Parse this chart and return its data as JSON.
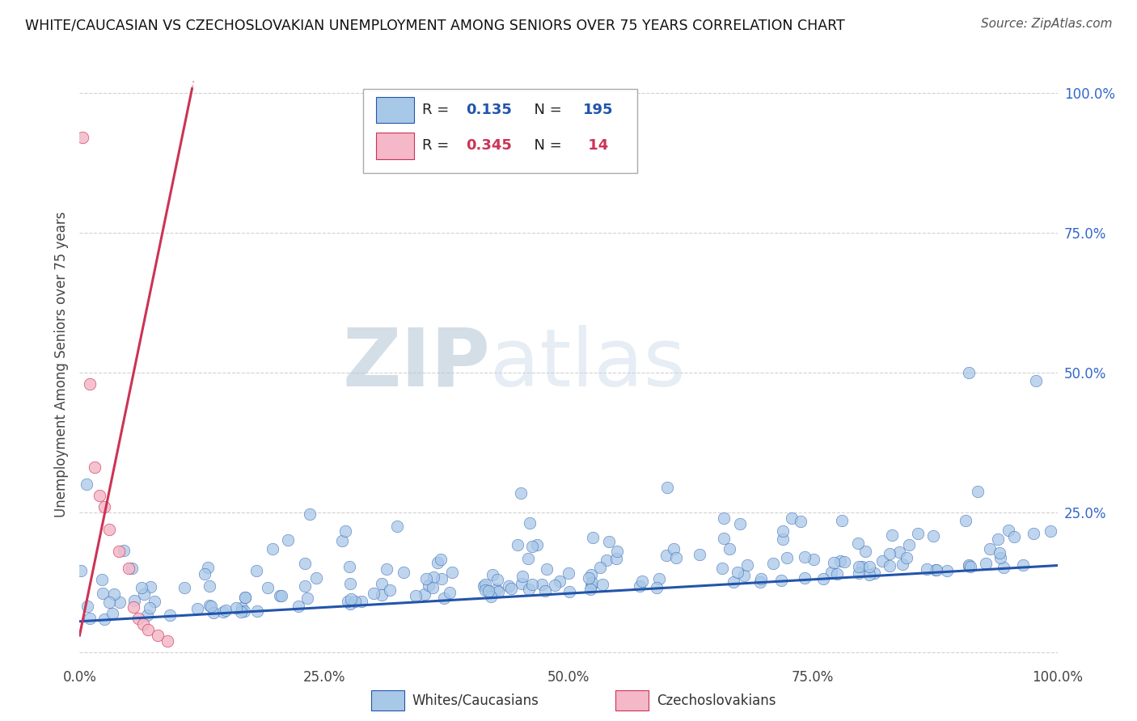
{
  "title": "WHITE/CAUCASIAN VS CZECHOSLOVAKIAN UNEMPLOYMENT AMONG SENIORS OVER 75 YEARS CORRELATION CHART",
  "source": "Source: ZipAtlas.com",
  "ylabel": "Unemployment Among Seniors over 75 years",
  "watermark_zip": "ZIP",
  "watermark_atlas": "atlas",
  "legend_label1": "Whites/Caucasians",
  "legend_label2": "Czechoslovakians",
  "r1": 0.135,
  "n1": 195,
  "r2": 0.345,
  "n2": 14,
  "color_blue": "#a8c8e8",
  "color_pink": "#f4b8c8",
  "line_blue": "#2255aa",
  "line_pink": "#cc3355",
  "xlim": [
    0.0,
    1.0
  ],
  "ylim": [
    -0.02,
    1.05
  ],
  "xticks": [
    0.0,
    0.25,
    0.5,
    0.75,
    1.0
  ],
  "yticks": [
    0.0,
    0.25,
    0.5,
    0.75,
    1.0
  ],
  "xticklabels": [
    "0.0%",
    "25.0%",
    "50.0%",
    "75.0%",
    "100.0%"
  ],
  "yticklabels": [
    "",
    "25.0%",
    "50.0%",
    "75.0%",
    "100.0%"
  ],
  "blue_trend_start_y": 0.055,
  "blue_trend_end_y": 0.155,
  "pink_trend_slope": 8.5,
  "pink_trend_intercept": 0.03
}
